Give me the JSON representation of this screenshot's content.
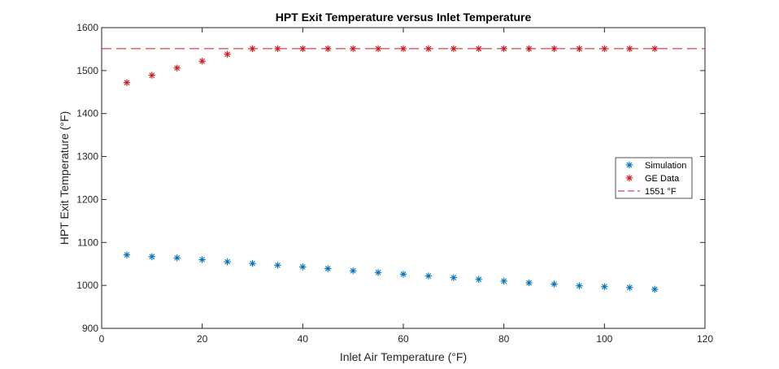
{
  "chart_data": {
    "type": "scatter",
    "title": "HPT Exit Temperature versus Inlet Temperature",
    "xlabel": "Inlet Air Temperature (°F)",
    "ylabel": "HPT Exit Temperature (°F)",
    "xlim": [
      0,
      120
    ],
    "ylim": [
      900,
      1600
    ],
    "xticks": [
      0,
      20,
      40,
      60,
      80,
      100,
      120
    ],
    "yticks": [
      900,
      1000,
      1100,
      1200,
      1300,
      1400,
      1500,
      1600
    ],
    "grid": false,
    "legend_position": "right",
    "series": [
      {
        "name": "Simulation",
        "marker": "asterisk",
        "color": "#0072BD",
        "x": [
          5,
          10,
          15,
          20,
          25,
          30,
          35,
          40,
          45,
          50,
          55,
          60,
          65,
          70,
          75,
          80,
          85,
          90,
          95,
          100,
          105,
          110
        ],
        "y": [
          1071,
          1067,
          1064,
          1060,
          1055,
          1051,
          1047,
          1043,
          1039,
          1034,
          1030,
          1026,
          1022,
          1018,
          1014,
          1010,
          1006,
          1003,
          999,
          997,
          995,
          991
        ]
      },
      {
        "name": "GE Data",
        "marker": "asterisk",
        "color": "#D3161C",
        "x": [
          5,
          10,
          15,
          20,
          25,
          30,
          35,
          40,
          45,
          50,
          55,
          60,
          65,
          70,
          75,
          80,
          85,
          90,
          95,
          100,
          105,
          110
        ],
        "y": [
          1472,
          1489,
          1506,
          1522,
          1538,
          1551,
          1551,
          1551,
          1551,
          1551,
          1551,
          1551,
          1551,
          1551,
          1551,
          1551,
          1551,
          1551,
          1551,
          1551,
          1551,
          1551
        ]
      },
      {
        "name": "1551 °F",
        "line": "dashed",
        "color": "#D3161C",
        "y": 1551
      }
    ]
  }
}
